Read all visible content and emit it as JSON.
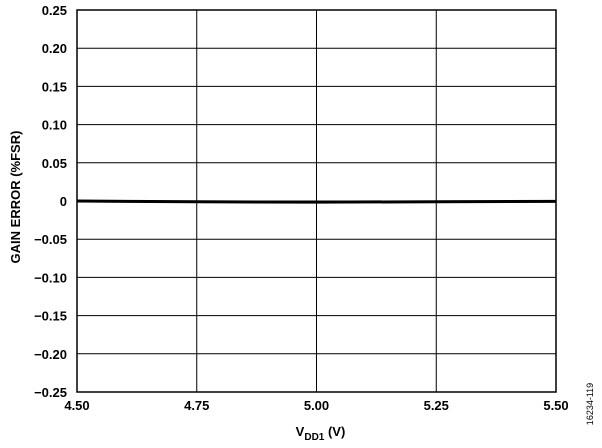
{
  "chart_data": {
    "type": "line",
    "title": "",
    "xlabel": {
      "main": "V",
      "sub": "DD1",
      "suffix": " (V)"
    },
    "ylabel": "GAIN ERROR (%FSR)",
    "xlim": [
      4.5,
      5.5
    ],
    "ylim": [
      -0.25,
      0.25
    ],
    "x_ticks": [
      4.5,
      4.75,
      5.0,
      5.25,
      5.5
    ],
    "x_tick_labels": [
      "4.50",
      "4.75",
      "5.00",
      "5.25",
      "5.50"
    ],
    "y_ticks": [
      0.25,
      0.2,
      0.15,
      0.1,
      0.05,
      0,
      -0.05,
      -0.1,
      -0.15,
      -0.2,
      -0.25
    ],
    "y_tick_labels": [
      "0.25",
      "0.20",
      "0.15",
      "0.10",
      "0.05",
      "0",
      "−0.05",
      "−0.10",
      "−0.15",
      "−0.20",
      "−0.25"
    ],
    "grid": true,
    "series": [
      {
        "color": "#000000",
        "x": [
          4.5,
          4.75,
          5.0,
          5.25,
          5.5
        ],
        "y": [
          0.0,
          -0.001,
          -0.0015,
          -0.001,
          -0.0005
        ]
      }
    ]
  },
  "figure_id": "16234-119"
}
